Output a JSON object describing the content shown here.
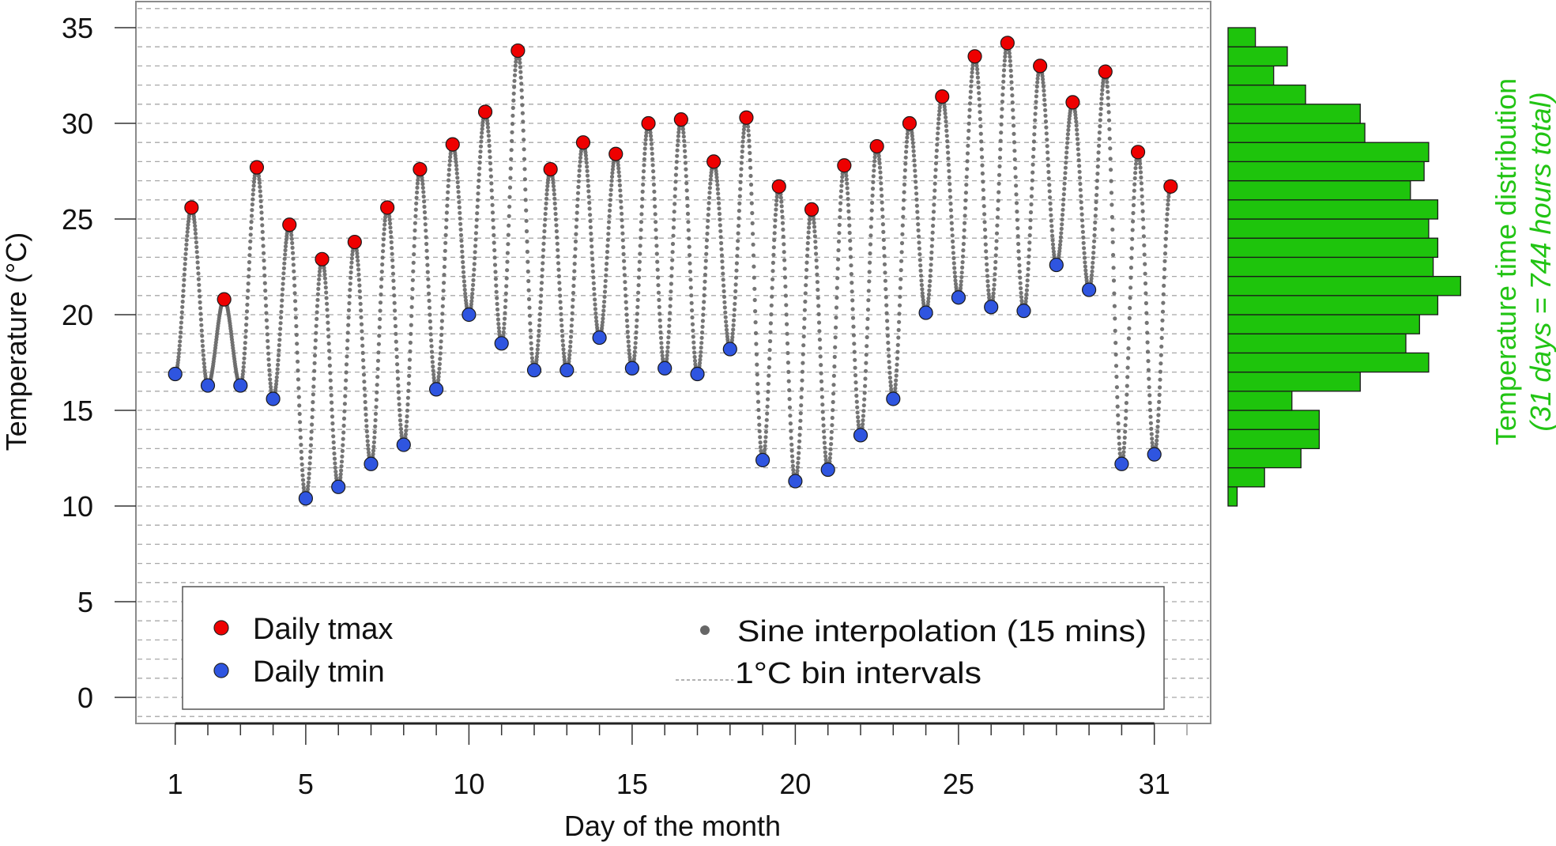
{
  "chart_data": [
    {
      "type": "scatter",
      "title": "",
      "xlabel": "Day of the month",
      "ylabel": "Temperature (°C)",
      "xlim": [
        0.4,
        32.2
      ],
      "ylim": [
        -1,
        36
      ],
      "x_ticks": [
        1,
        5,
        10,
        15,
        20,
        25,
        31
      ],
      "x_tick_labels": [
        "1",
        "5",
        "10",
        "15",
        "20",
        "25",
        "31"
      ],
      "y_ticks": [
        0,
        5,
        10,
        15,
        20,
        25,
        30,
        35
      ],
      "y_tick_labels": [
        "0",
        "5",
        "10",
        "15",
        "20",
        "25",
        "30",
        "35"
      ],
      "grid": "horizontal dashed lines every 1°C",
      "series": [
        {
          "name": "Daily tmax",
          "color": "#ee0000",
          "x": [
            1.5,
            2.5,
            3.5,
            4.5,
            5.5,
            6.5,
            7.5,
            8.5,
            9.5,
            10.5,
            11.5,
            12.5,
            13.5,
            14.5,
            15.5,
            16.5,
            17.5,
            18.5,
            19.5,
            20.5,
            21.5,
            22.5,
            23.5,
            24.5,
            25.5,
            26.5,
            27.5,
            28.5,
            29.5,
            30.5,
            31.5
          ],
          "values": [
            25.6,
            20.8,
            27.7,
            24.7,
            22.9,
            23.8,
            25.6,
            27.6,
            28.9,
            30.6,
            33.8,
            27.6,
            29.0,
            28.4,
            30.0,
            30.2,
            28.0,
            30.3,
            26.7,
            25.5,
            27.8,
            28.8,
            30.0,
            31.4,
            33.5,
            34.2,
            33.0,
            31.1,
            32.7,
            28.5,
            26.7
          ]
        },
        {
          "name": "Daily tmin",
          "color": "#2f55e0",
          "x": [
            1,
            2,
            3,
            4,
            5,
            6,
            7,
            8,
            9,
            10,
            11,
            12,
            13,
            14,
            15,
            16,
            17,
            18,
            19,
            20,
            21,
            22,
            23,
            24,
            25,
            26,
            27,
            28,
            29,
            30,
            31
          ],
          "values": [
            16.9,
            16.3,
            16.3,
            15.6,
            10.4,
            11.0,
            12.2,
            13.2,
            16.1,
            20.0,
            18.5,
            17.1,
            17.1,
            18.8,
            17.2,
            17.2,
            16.9,
            18.2,
            12.4,
            11.3,
            11.9,
            13.7,
            15.6,
            20.1,
            20.9,
            20.4,
            20.2,
            22.6,
            21.3,
            12.2,
            12.7
          ]
        },
        {
          "name": "Sine interpolation (15 mins)",
          "color": "#666666",
          "interval_minutes": 15
        }
      ],
      "legend": {
        "position": "bottom-inside",
        "entries": [
          {
            "label": "Daily tmax",
            "marker": "circle",
            "color": "#ee0000"
          },
          {
            "label": "Daily tmin",
            "marker": "circle",
            "color": "#2f55e0"
          },
          {
            "label": "Sine interpolation (15 mins)",
            "marker": "dot",
            "color": "#666666"
          },
          {
            "label": "1°C bin intervals",
            "marker": "dashed-line",
            "color": "#999999"
          }
        ]
      }
    },
    {
      "type": "bar",
      "orientation": "horizontal",
      "title": "Temperature time distribution",
      "subtitle": "(31 days = 744 hours total)",
      "color": "#1ec40c",
      "label_color": "#22c414",
      "bin_width_c": 1,
      "bins_lower_c": [
        10,
        11,
        12,
        13,
        14,
        15,
        16,
        17,
        18,
        19,
        20,
        21,
        22,
        23,
        24,
        25,
        26,
        27,
        28,
        29,
        30,
        31,
        32,
        33,
        34
      ],
      "hours": [
        2,
        8,
        16,
        20,
        20,
        14,
        29,
        44,
        39,
        42,
        46,
        51,
        45,
        46,
        44,
        46,
        40,
        43,
        44,
        30,
        29,
        17,
        10,
        13,
        6
      ],
      "total_hours": 744
    }
  ]
}
